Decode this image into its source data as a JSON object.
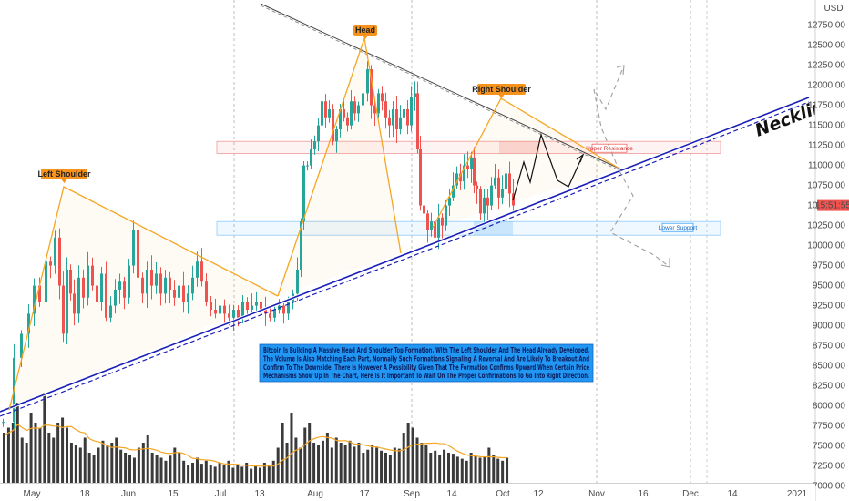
{
  "chart_data": {
    "type": "candlestick",
    "currency_label": "USD",
    "price_axis": {
      "ylim": [
        6850,
        12950
      ],
      "ticks": [
        "12750.00",
        "12500.00",
        "12250.00",
        "12000.00",
        "11750.00",
        "11500.00",
        "11250.00",
        "11000.00",
        "10750.00",
        "10500.00",
        "10250.00",
        "10000.00",
        "9750.00",
        "9500.00",
        "9250.00",
        "9000.00",
        "8750.00",
        "8500.00",
        "8250.00",
        "8000.00",
        "7750.00",
        "7500.00",
        "7250.00",
        "7000.00"
      ]
    },
    "current_price_label": "15:51:55",
    "current_price": 10500,
    "x_axis": {
      "labels": [
        "May",
        "18",
        "Jun",
        "15",
        "Jul",
        "13",
        "Aug",
        "17",
        "Sep",
        "14",
        "Oct",
        "12",
        "Nov",
        "16",
        "Dec",
        "14",
        "2021"
      ]
    },
    "price_path": [
      [
        0,
        7800
      ],
      [
        12,
        8600
      ],
      [
        20,
        8900
      ],
      [
        28,
        9150
      ],
      [
        34,
        9500
      ],
      [
        40,
        9300
      ],
      [
        47,
        9800
      ],
      [
        52,
        9750
      ],
      [
        57,
        10100
      ],
      [
        62,
        9500
      ],
      [
        66,
        8900
      ],
      [
        70,
        9700
      ],
      [
        74,
        9400
      ],
      [
        78,
        9150
      ],
      [
        83,
        9600
      ],
      [
        88,
        9350
      ],
      [
        93,
        9750
      ],
      [
        98,
        9500
      ],
      [
        103,
        9300
      ],
      [
        108,
        9650
      ],
      [
        113,
        9100
      ],
      [
        118,
        9250
      ],
      [
        123,
        9450
      ],
      [
        128,
        9550
      ],
      [
        133,
        9350
      ],
      [
        138,
        9750
      ],
      [
        143,
        10200
      ],
      [
        148,
        9600
      ],
      [
        153,
        9400
      ],
      [
        158,
        9700
      ],
      [
        163,
        9500
      ],
      [
        168,
        9650
      ],
      [
        173,
        9400
      ],
      [
        178,
        9600
      ],
      [
        183,
        9450
      ],
      [
        188,
        9350
      ],
      [
        193,
        9500
      ],
      [
        198,
        9300
      ],
      [
        203,
        9400
      ],
      [
        208,
        9600
      ],
      [
        213,
        9800
      ],
      [
        218,
        9550
      ],
      [
        223,
        9300
      ],
      [
        228,
        9200
      ],
      [
        233,
        9150
      ],
      [
        238,
        9250
      ],
      [
        243,
        9150
      ],
      [
        248,
        9100
      ],
      [
        253,
        9200
      ],
      [
        258,
        9100
      ],
      [
        263,
        9300
      ],
      [
        268,
        9200
      ],
      [
        273,
        9250
      ],
      [
        278,
        9300
      ],
      [
        283,
        9200
      ],
      [
        288,
        9150
      ],
      [
        293,
        9100
      ],
      [
        298,
        9200
      ],
      [
        303,
        9250
      ],
      [
        308,
        9150
      ],
      [
        313,
        9300
      ],
      [
        318,
        9400
      ],
      [
        323,
        9700
      ],
      [
        327,
        10300
      ],
      [
        330,
        11000
      ],
      [
        334,
        11000
      ],
      [
        338,
        11200
      ],
      [
        342,
        11300
      ],
      [
        346,
        11500
      ],
      [
        350,
        11800
      ],
      [
        354,
        11600
      ],
      [
        358,
        11700
      ],
      [
        362,
        11300
      ],
      [
        366,
        11450
      ],
      [
        370,
        11700
      ],
      [
        374,
        11600
      ],
      [
        378,
        11500
      ],
      [
        382,
        11800
      ],
      [
        386,
        11650
      ],
      [
        390,
        11750
      ],
      [
        395,
        11900
      ],
      [
        400,
        12200
      ],
      [
        404,
        11750
      ],
      [
        408,
        11650
      ],
      [
        412,
        11900
      ],
      [
        416,
        11800
      ],
      [
        420,
        11600
      ],
      [
        424,
        11500
      ],
      [
        428,
        11700
      ],
      [
        432,
        11450
      ],
      [
        436,
        11600
      ],
      [
        440,
        11700
      ],
      [
        444,
        11500
      ],
      [
        448,
        11850
      ],
      [
        452,
        11900
      ],
      [
        455,
        11200
      ],
      [
        458,
        10500
      ],
      [
        462,
        10400
      ],
      [
        466,
        10200
      ],
      [
        470,
        10300
      ],
      [
        474,
        10100
      ],
      [
        478,
        10350
      ],
      [
        482,
        10250
      ],
      [
        486,
        10500
      ],
      [
        490,
        10600
      ],
      [
        494,
        10750
      ],
      [
        498,
        10900
      ],
      [
        502,
        10800
      ],
      [
        506,
        11000
      ],
      [
        510,
        10950
      ],
      [
        514,
        11100
      ],
      [
        517,
        10750
      ],
      [
        520,
        10700
      ],
      [
        524,
        10400
      ],
      [
        528,
        10600
      ],
      [
        532,
        10500
      ],
      [
        536,
        10750
      ],
      [
        540,
        10850
      ],
      [
        544,
        10600
      ],
      [
        548,
        10700
      ],
      [
        552,
        10900
      ],
      [
        556,
        10650
      ],
      [
        560,
        10500
      ]
    ],
    "volume_bars": [
      0.5,
      0.55,
      0.6,
      0.8,
      0.45,
      0.4,
      0.7,
      0.6,
      0.55,
      0.9,
      0.5,
      0.45,
      0.6,
      0.65,
      0.55,
      0.4,
      0.38,
      0.35,
      0.45,
      0.3,
      0.28,
      0.35,
      0.42,
      0.38,
      0.4,
      0.45,
      0.33,
      0.3,
      0.28,
      0.25,
      0.35,
      0.4,
      0.48,
      0.3,
      0.28,
      0.25,
      0.22,
      0.27,
      0.35,
      0.3,
      0.22,
      0.18,
      0.2,
      0.25,
      0.19,
      0.22,
      0.18,
      0.16,
      0.2,
      0.18,
      0.22,
      0.15,
      0.18,
      0.16,
      0.2,
      0.14,
      0.17,
      0.15,
      0.2,
      0.18,
      0.22,
      0.35,
      0.6,
      0.4,
      0.7,
      0.45,
      0.35,
      0.55,
      0.6,
      0.4,
      0.38,
      0.42,
      0.5,
      0.35,
      0.45,
      0.4,
      0.38,
      0.42,
      0.36,
      0.4,
      0.3,
      0.33,
      0.38,
      0.35,
      0.32,
      0.3,
      0.28,
      0.35,
      0.34,
      0.5,
      0.6,
      0.55,
      0.45,
      0.4,
      0.38,
      0.3,
      0.32,
      0.28,
      0.33,
      0.3,
      0.29,
      0.26,
      0.24,
      0.22,
      0.3,
      0.27,
      0.25,
      0.26,
      0.35,
      0.28,
      0.24,
      0.22,
      0.25
    ],
    "patterns": {
      "left_shoulder_label": "Left Shoulder",
      "head_label": "Head",
      "right_shoulder_label": "Right Shoulder",
      "neckline_label": "Neckline",
      "upper_resistance_label": "Upper Resistance",
      "lower_support_label": "Lower Support",
      "upper_resistance_range": [
        11150,
        11300
      ],
      "lower_support_range": [
        10130,
        10300
      ]
    },
    "colors": {
      "up": "#26a69a",
      "down": "#ef5350",
      "neckline": "#1a1fb8",
      "pattern": "#f5a623",
      "label_bg": "#f7931a",
      "info_bg": "#2196f3",
      "volume_bar": "#3a3a3a",
      "volume_ma": "#f5a623"
    }
  },
  "info_box": {
    "lines": [
      "Bitcoin Is Building A Massive Head And Shoulder Top Formation, With The Left Shoulder And The Head Already Developed,",
      "The Volume Is Also Matching Each Part, Normally Such Formations Signaling A Reversal And Are Likely To Breakout And",
      "Confirm To The Downside, There Is However A Possibility Given That The Formation Confirms Upward When Certain Price",
      "Mechanisms Show Up In The Chart, Here Is It Important To Wait On The Proper Confirmations To Go Into Right Direction."
    ]
  }
}
